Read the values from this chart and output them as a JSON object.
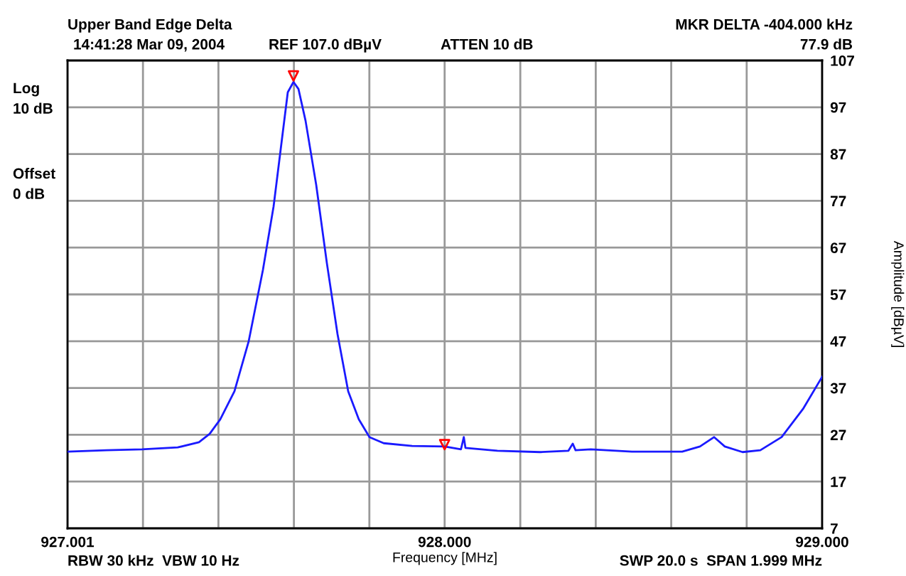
{
  "chart_data": {
    "type": "line",
    "title": "Upper Band Edge Delta",
    "xlabel": "Frequency [MHz]",
    "ylabel": "Amplitude [dBµV]",
    "annotations": [
      "14:41:28 Mar 09, 2004",
      "REF 107.0 dBµV",
      "ATTEN 10 dB",
      "MKR DELTA -404.000 kHz",
      "77.9 dB",
      "Log\n10 dB",
      "Offset\n0 dB",
      "RBW 30 kHz  VBW 10 Hz",
      "SWP 20.0 s  SPAN 1.999 MHz"
    ],
    "xlim": [
      927.001,
      929.0
    ],
    "ylim": [
      7,
      107
    ],
    "xticks": [
      {
        "value": 927.001,
        "label": "927.001"
      },
      {
        "value": 927.2009,
        "label": null
      },
      {
        "value": 927.4008,
        "label": null
      },
      {
        "value": 927.6007,
        "label": null
      },
      {
        "value": 927.8006,
        "label": null
      },
      {
        "value": 928.0,
        "label": "928.000"
      },
      {
        "value": 928.2004,
        "label": null
      },
      {
        "value": 928.4003,
        "label": null
      },
      {
        "value": 928.6002,
        "label": null
      },
      {
        "value": 928.8001,
        "label": null
      },
      {
        "value": 929.0,
        "label": "929.000"
      }
    ],
    "yticks": [
      7,
      17,
      27,
      37,
      47,
      57,
      67,
      77,
      87,
      97,
      107
    ],
    "grid": true,
    "line_style": "solid",
    "series": [
      {
        "color": "#1a1aff",
        "marker": "none",
        "x": [
          927.001,
          927.1045,
          927.1986,
          927.2928,
          927.3492,
          927.3775,
          927.4057,
          927.4433,
          927.481,
          927.5186,
          927.5469,
          927.5657,
          927.5845,
          927.5996,
          927.6128,
          927.6316,
          927.6598,
          927.688,
          927.7163,
          927.7445,
          927.7727,
          927.801,
          927.8386,
          927.9139,
          928.0,
          928.0433,
          928.0508,
          928.0551,
          928.1398,
          928.2527,
          928.328,
          928.3393,
          928.3468,
          928.3871,
          928.4963,
          928.6292,
          928.6763,
          928.7139,
          928.7421,
          928.7892,
          928.8362,
          928.8927,
          928.9492,
          929.0
        ],
        "values": [
          23.4,
          23.7,
          23.9,
          24.3,
          25.4,
          27.2,
          30.3,
          36.3,
          47.0,
          62.2,
          75.8,
          88.0,
          100.2,
          102.4,
          100.9,
          94.1,
          80.4,
          63.7,
          48.5,
          36.3,
          30.3,
          26.5,
          25.2,
          24.6,
          24.5,
          23.9,
          26.5,
          24.2,
          23.6,
          23.3,
          23.6,
          25.1,
          23.7,
          23.9,
          23.4,
          23.4,
          24.5,
          26.5,
          24.5,
          23.3,
          23.7,
          26.5,
          32.5,
          39.4
        ]
      },
      {
        "type": "scatter",
        "color": "#ff0000",
        "marker": "triangle",
        "x": [
          927.5996,
          928.0
        ],
        "values": [
          103.7,
          24.9
        ]
      }
    ]
  }
}
